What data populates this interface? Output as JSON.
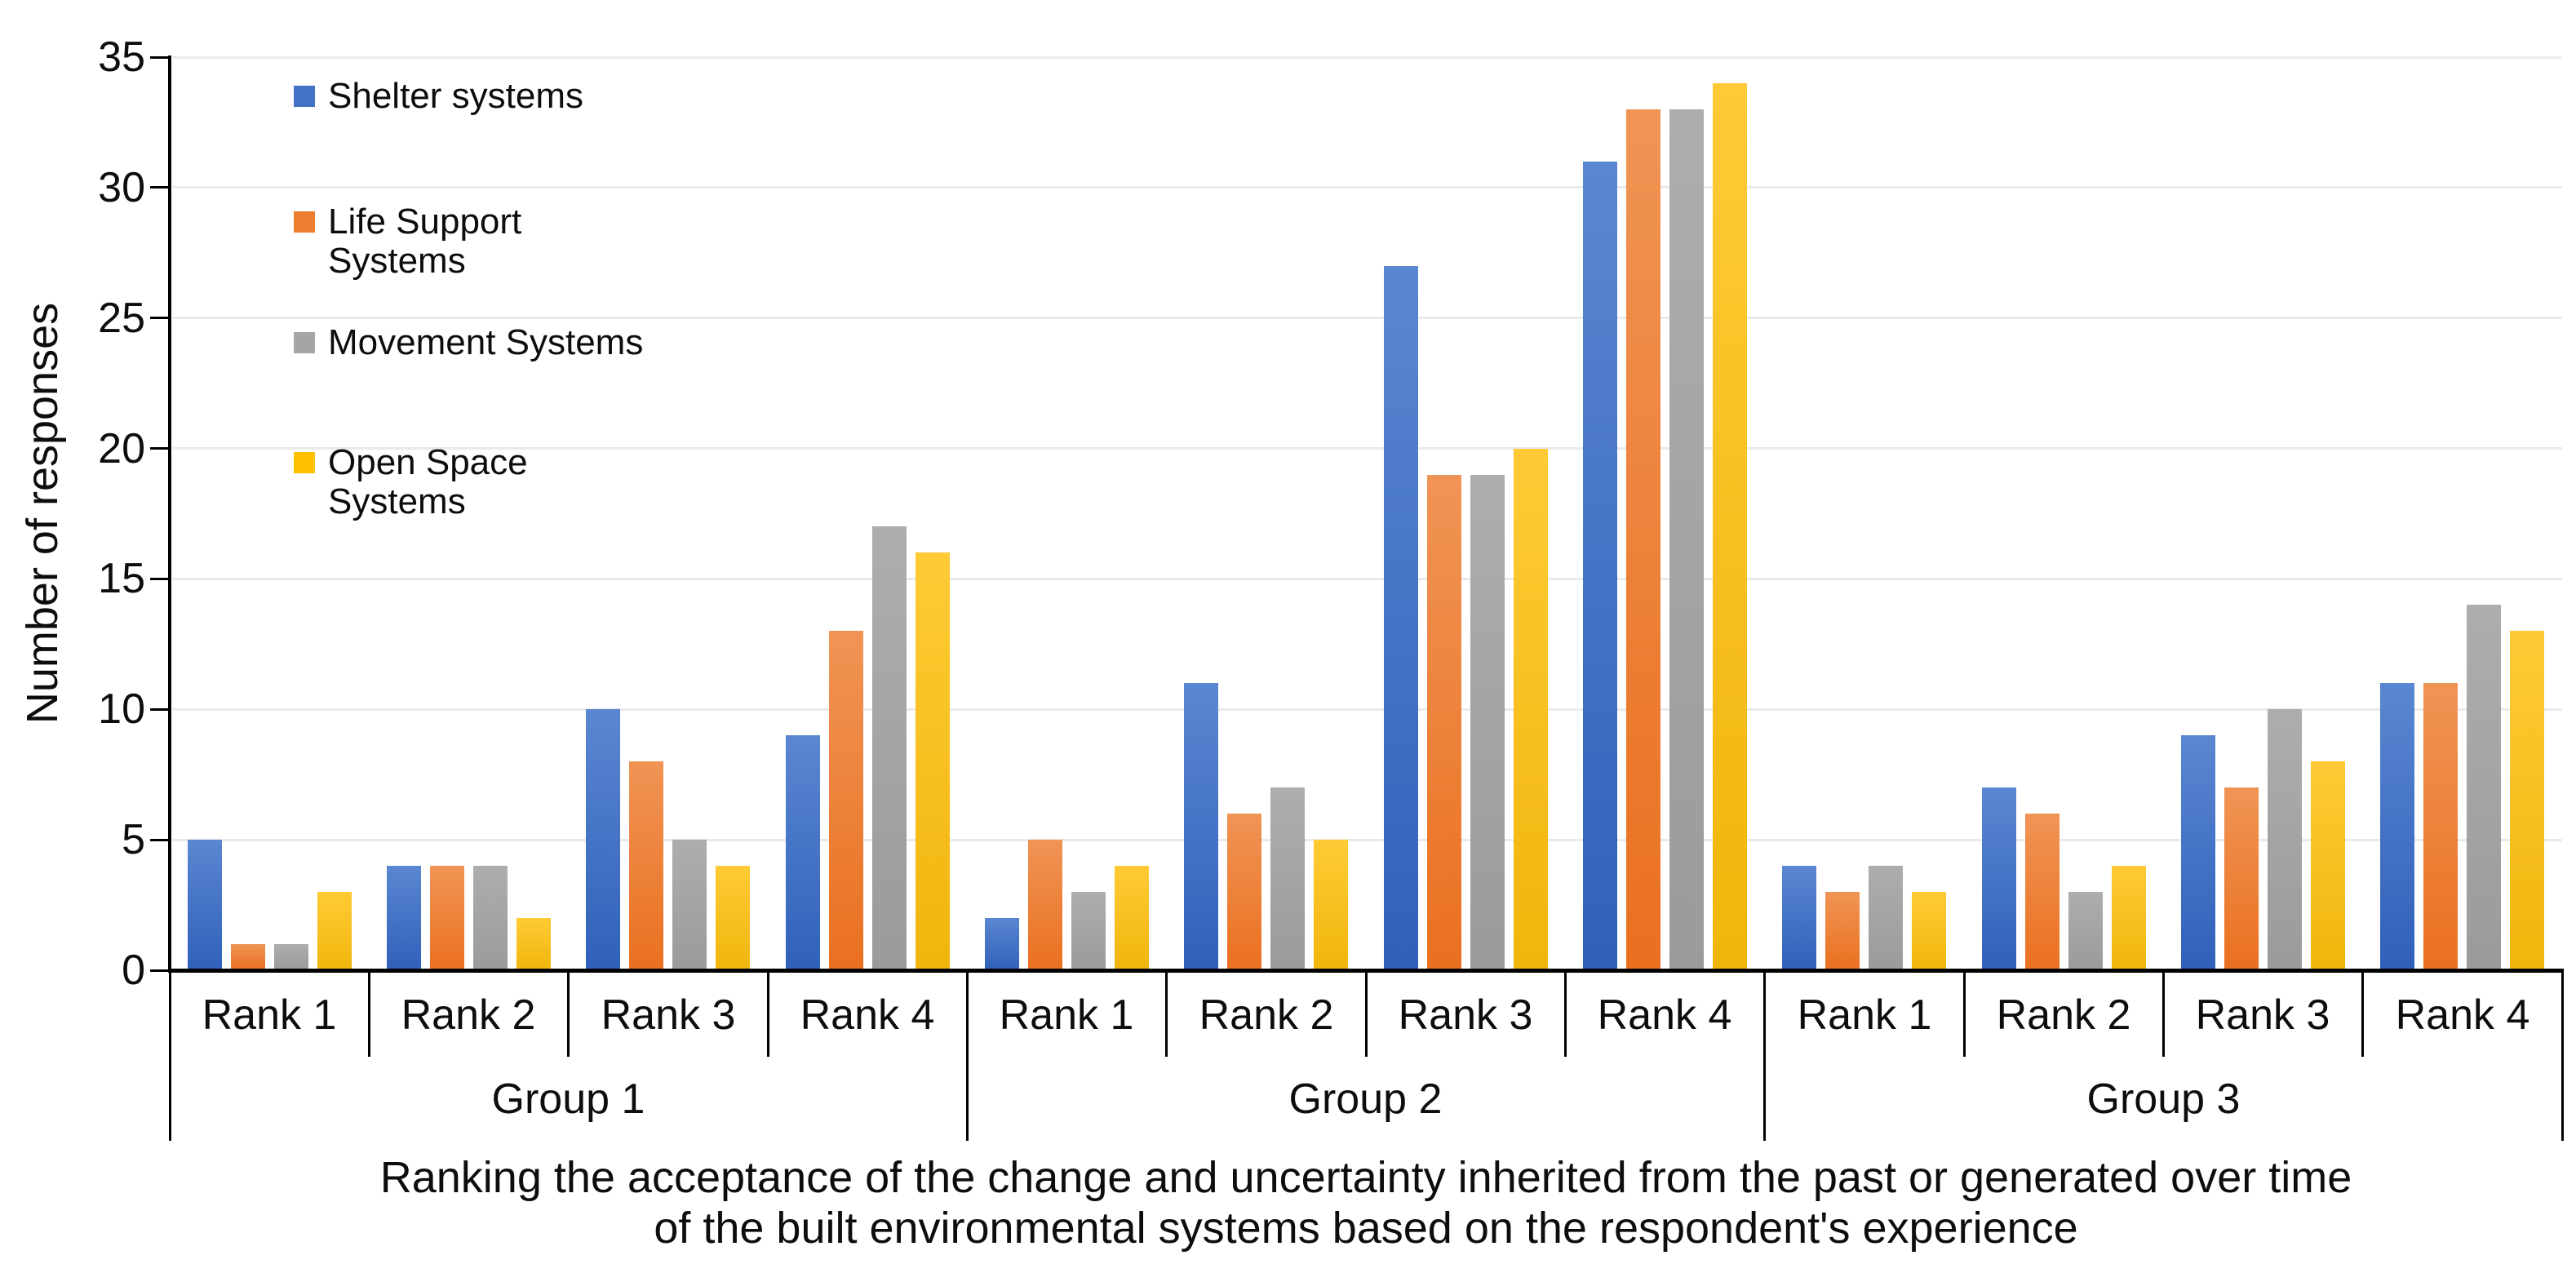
{
  "chart_data": {
    "type": "bar",
    "title_lines": [
      "Ranking the acceptance of the change and uncertainty inherited from the past or generated over time",
      "of the built environmental systems based on the respondent's experience"
    ],
    "ylabel": "Number of responses",
    "ylim": [
      0,
      35
    ],
    "ytick_interval": 5,
    "yticks": [
      0,
      5,
      10,
      15,
      20,
      25,
      30,
      35
    ],
    "grid": true,
    "legend_position": "inside-top-left",
    "groups": [
      "Group 1",
      "Group 2",
      "Group 3"
    ],
    "ranks": [
      "Rank 1",
      "Rank 2",
      "Rank 3",
      "Rank 4"
    ],
    "series": [
      {
        "name": "Shelter systems",
        "legend_lines": [
          "Shelter systems"
        ],
        "color": "#4472C4",
        "gradient_top": "#5A87D1",
        "gradient_bottom": "#3060BA",
        "values_by_group": [
          [
            5,
            4,
            10,
            9
          ],
          [
            2,
            11,
            27,
            31
          ],
          [
            4,
            7,
            9,
            11
          ]
        ]
      },
      {
        "name": "Life Support Systems",
        "legend_lines": [
          "Life Support",
          "Systems"
        ],
        "color": "#ED7D31",
        "gradient_top": "#F09455",
        "gradient_bottom": "#EA7020",
        "values_by_group": [
          [
            1,
            4,
            8,
            13
          ],
          [
            5,
            6,
            19,
            33
          ],
          [
            3,
            6,
            7,
            11
          ]
        ]
      },
      {
        "name": "Movement Systems",
        "legend_lines": [
          "Movement Systems"
        ],
        "color": "#A5A5A5",
        "gradient_top": "#AFADAC",
        "gradient_bottom": "#9B9B9B",
        "values_by_group": [
          [
            1,
            4,
            5,
            17
          ],
          [
            3,
            7,
            19,
            33
          ],
          [
            4,
            3,
            10,
            14
          ]
        ]
      },
      {
        "name": "Open Space Systems",
        "legend_lines": [
          "Open Space",
          "Systems"
        ],
        "color": "#FFC000",
        "gradient_top": "#FFCA35",
        "gradient_bottom": "#F0B60C",
        "values_by_group": [
          [
            3,
            2,
            4,
            16
          ],
          [
            4,
            5,
            20,
            34
          ],
          [
            3,
            4,
            8,
            13
          ]
        ]
      }
    ],
    "axis_color": "#000000",
    "gridline_color": "#EAEAEA",
    "text_color": "#0D0D0D"
  }
}
